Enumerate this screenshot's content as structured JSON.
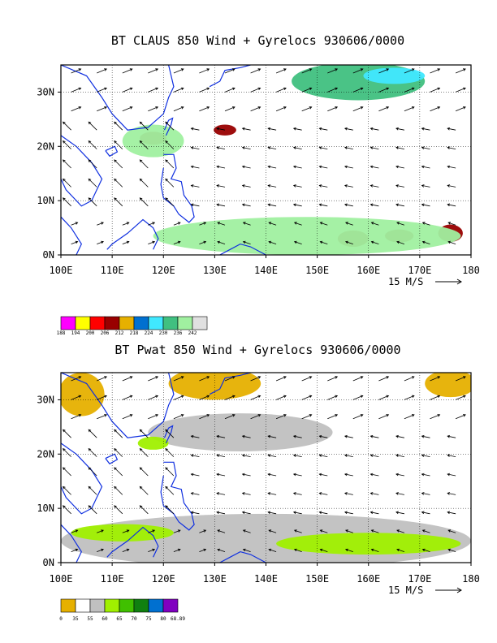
{
  "chart_data": [
    {
      "type": "heatmap",
      "title": "BT CLAUS 850 Wind + Gyrelocs 930606/0000",
      "xlabel": "",
      "ylabel": "",
      "x_ticks": [
        "100E",
        "110E",
        "120E",
        "130E",
        "140E",
        "150E",
        "160E",
        "170E",
        "180"
      ],
      "y_ticks": [
        "0N",
        "10N",
        "20N",
        "30N"
      ],
      "xlim": [
        100,
        180
      ],
      "ylim": [
        0,
        35
      ],
      "grid": true,
      "vector_reference": "15 M/S",
      "legend": {
        "placement": "bottom-left",
        "labels": [
          "188",
          "194",
          "200",
          "206",
          "212",
          "218",
          "224",
          "230",
          "236",
          "242"
        ],
        "colors": [
          "#ff00ff",
          "#ffff00",
          "#ff0000",
          "#990000",
          "#e6b000",
          "#0070d0",
          "#40e8ff",
          "#40c080",
          "#a0f0a0",
          "#e0e0e0"
        ]
      },
      "features": [
        {
          "name": "convective-cluster-1",
          "cx": 118,
          "cy": 21.5,
          "rx": 2.6,
          "ry": 1.2,
          "color": "#990000"
        },
        {
          "name": "convective-cluster-2",
          "cx": 132,
          "cy": 23,
          "rx": 2.2,
          "ry": 1.0,
          "color": "#990000"
        },
        {
          "name": "convective-cluster-3",
          "cx": 157,
          "cy": 3,
          "rx": 3.0,
          "ry": 1.5,
          "color": "#990000"
        },
        {
          "name": "convective-cluster-4",
          "cx": 176,
          "cy": 4,
          "rx": 2.4,
          "ry": 1.6,
          "color": "#990000"
        },
        {
          "name": "convective-cluster-5",
          "cx": 166,
          "cy": 3.5,
          "rx": 2.8,
          "ry": 1.2,
          "color": "#990000"
        },
        {
          "name": "cloud-band-northeast",
          "cx": 158,
          "cy": 32,
          "rx": 13,
          "ry": 3.5,
          "color": "#40c080"
        },
        {
          "name": "cloud-band-northeast-cold",
          "cx": 165,
          "cy": 33,
          "rx": 6,
          "ry": 1.5,
          "color": "#40e8ff"
        },
        {
          "name": "cloud-band-south",
          "cx": 148,
          "cy": 3.5,
          "rx": 30,
          "ry": 3.5,
          "color": "#a0f0a0"
        },
        {
          "name": "cloud-south-china",
          "cx": 118,
          "cy": 21,
          "rx": 6,
          "ry": 3,
          "color": "#a0f0a0"
        }
      ]
    },
    {
      "type": "heatmap",
      "title": "BT Pwat 850 Wind + Gyrelocs 930606/0000",
      "xlabel": "",
      "ylabel": "",
      "x_ticks": [
        "100E",
        "110E",
        "120E",
        "130E",
        "140E",
        "150E",
        "160E",
        "170E",
        "180"
      ],
      "y_ticks": [
        "0N",
        "10N",
        "20N",
        "30N"
      ],
      "xlim": [
        100,
        180
      ],
      "ylim": [
        0,
        35
      ],
      "grid": true,
      "vector_reference": "15 M/S",
      "legend": {
        "placement": "bottom-left",
        "labels": [
          "0",
          "35",
          "55",
          "60",
          "65",
          "70",
          "75",
          "80",
          "68.89"
        ],
        "colors": [
          "#e6b000",
          "#ffffff",
          "#c0c0c0",
          "#a0f000",
          "#40c000",
          "#108010",
          "#0070d0",
          "#8000c0"
        ]
      },
      "features": [
        {
          "name": "dry-northwest",
          "cx": 104,
          "cy": 31,
          "rx": 4.5,
          "ry": 4,
          "color": "#e6b000"
        },
        {
          "name": "dry-north-central",
          "cx": 130,
          "cy": 33,
          "rx": 9,
          "ry": 3,
          "color": "#e6b000"
        },
        {
          "name": "dry-northeast",
          "cx": 176,
          "cy": 33,
          "rx": 5,
          "ry": 2.5,
          "color": "#e6b000"
        },
        {
          "name": "moist-band-subtropical",
          "cx": 135,
          "cy": 24,
          "rx": 18,
          "ry": 3.5,
          "color": "#c0c0c0"
        },
        {
          "name": "moist-band-south",
          "cx": 140,
          "cy": 4,
          "rx": 40,
          "ry": 5,
          "color": "#c0c0c0"
        },
        {
          "name": "very-moist-south",
          "cx": 160,
          "cy": 3.5,
          "rx": 18,
          "ry": 2,
          "color": "#a0f000"
        },
        {
          "name": "very-moist-southwest",
          "cx": 112,
          "cy": 5.5,
          "rx": 10,
          "ry": 1.6,
          "color": "#a0f000"
        },
        {
          "name": "very-moist-china",
          "cx": 118,
          "cy": 22,
          "rx": 3,
          "ry": 1.2,
          "color": "#a0f000"
        }
      ]
    }
  ]
}
